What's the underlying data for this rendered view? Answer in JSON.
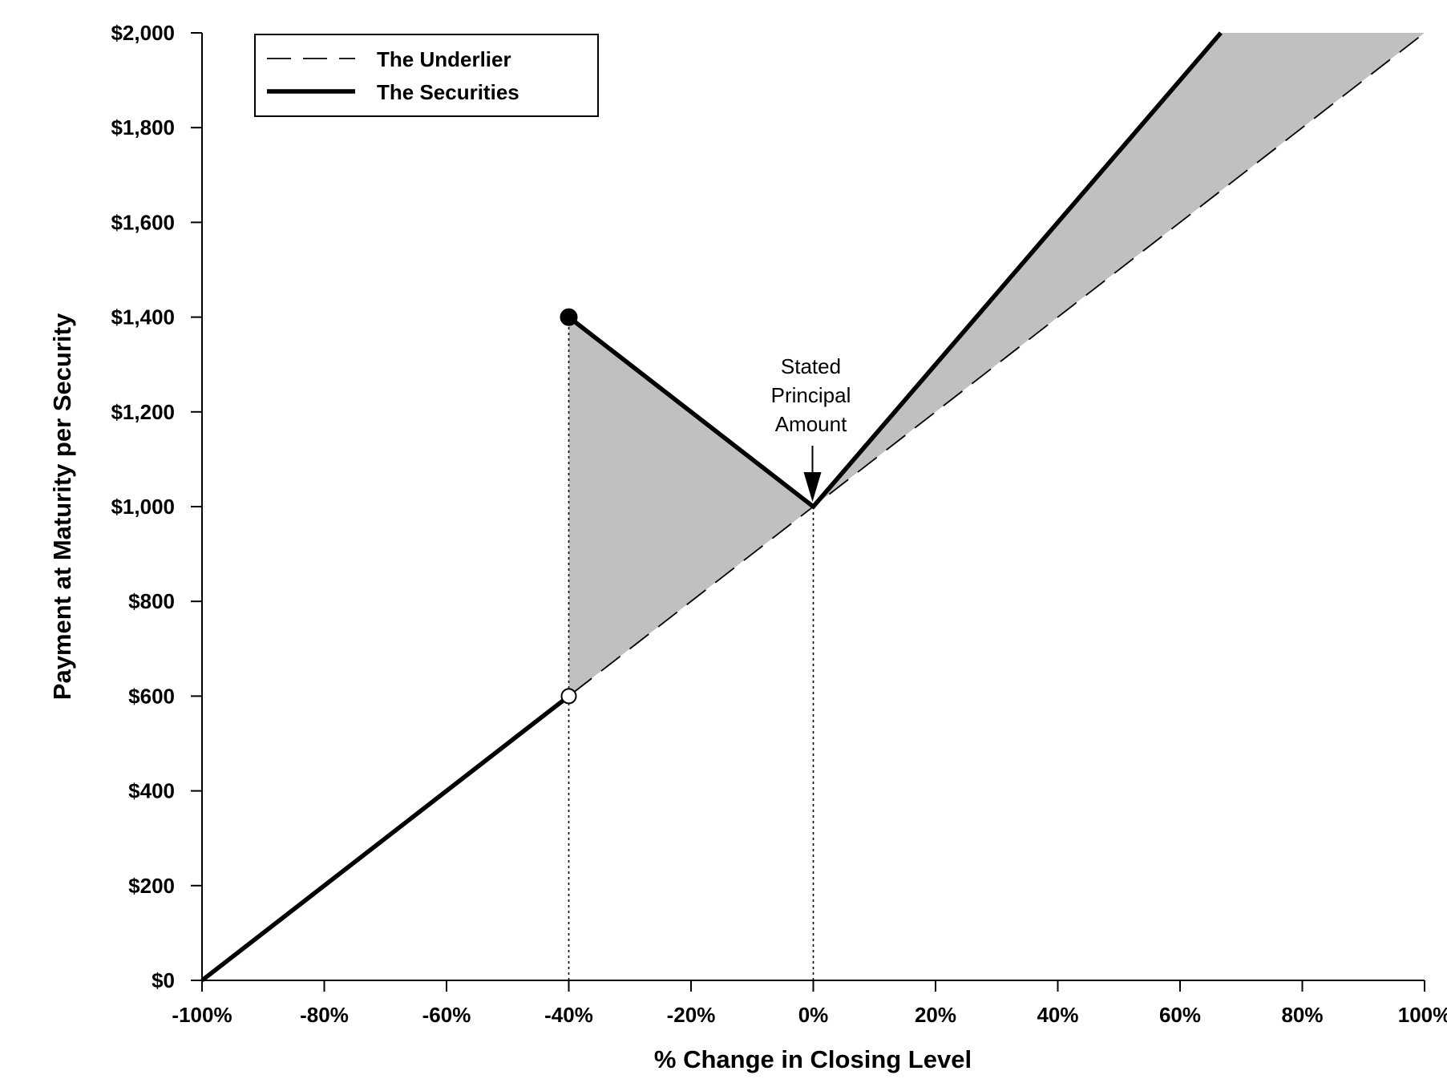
{
  "chart_data": {
    "type": "line",
    "xlabel": "% Change in Closing Level",
    "ylabel": "Payment at Maturity per Security",
    "xlim": [
      -100,
      100
    ],
    "ylim": [
      0,
      2000
    ],
    "x_ticks": [
      -100,
      -80,
      -60,
      -40,
      -20,
      0,
      20,
      40,
      60,
      80,
      100
    ],
    "x_tick_labels": [
      "-100%",
      "-80%",
      "-60%",
      "-40%",
      "-20%",
      "0%",
      "20%",
      "40%",
      "60%",
      "80%",
      "100%"
    ],
    "y_ticks": [
      0,
      200,
      400,
      600,
      800,
      1000,
      1200,
      1400,
      1600,
      1800,
      2000
    ],
    "y_tick_labels": [
      "$0",
      "$200",
      "$400",
      "$600",
      "$800",
      "$1,000",
      "$1,200",
      "$1,400",
      "$1,600",
      "$1,800",
      "$2,000"
    ],
    "grid": false,
    "legend_position": "top-left",
    "series": [
      {
        "name": "The Underlier",
        "style": "dashed",
        "color": "#000000",
        "points": [
          [
            -100,
            0
          ],
          [
            100,
            2000
          ]
        ]
      },
      {
        "name": "The Securities",
        "style": "solid",
        "color": "#000000",
        "segments": [
          [
            [
              -100,
              0
            ],
            [
              -40,
              600
            ]
          ],
          [
            [
              -40,
              1400
            ],
            [
              0,
              1000
            ],
            [
              66.67,
              2000
            ]
          ]
        ],
        "markers": [
          {
            "x": -40,
            "y": 1400,
            "fill": "filled"
          },
          {
            "x": -40,
            "y": 600,
            "fill": "open"
          }
        ]
      }
    ],
    "shaded_regions": [
      {
        "color": "#c0c0c0",
        "points": [
          [
            -40,
            600
          ],
          [
            -40,
            1400
          ],
          [
            0,
            1000
          ]
        ]
      },
      {
        "color": "#c0c0c0",
        "points": [
          [
            0,
            1000
          ],
          [
            66.67,
            2000
          ],
          [
            100,
            2000
          ]
        ]
      }
    ],
    "reference_lines": [
      {
        "x": -40,
        "y_from": 0,
        "y_to": 1400,
        "style": "dotted"
      },
      {
        "x": 0,
        "y_from": 0,
        "y_to": 1000,
        "style": "dotted"
      }
    ],
    "annotations": [
      {
        "lines": [
          "Stated",
          "Principal",
          "Amount"
        ],
        "x": 0,
        "y": 1000,
        "arrow": true
      }
    ]
  }
}
